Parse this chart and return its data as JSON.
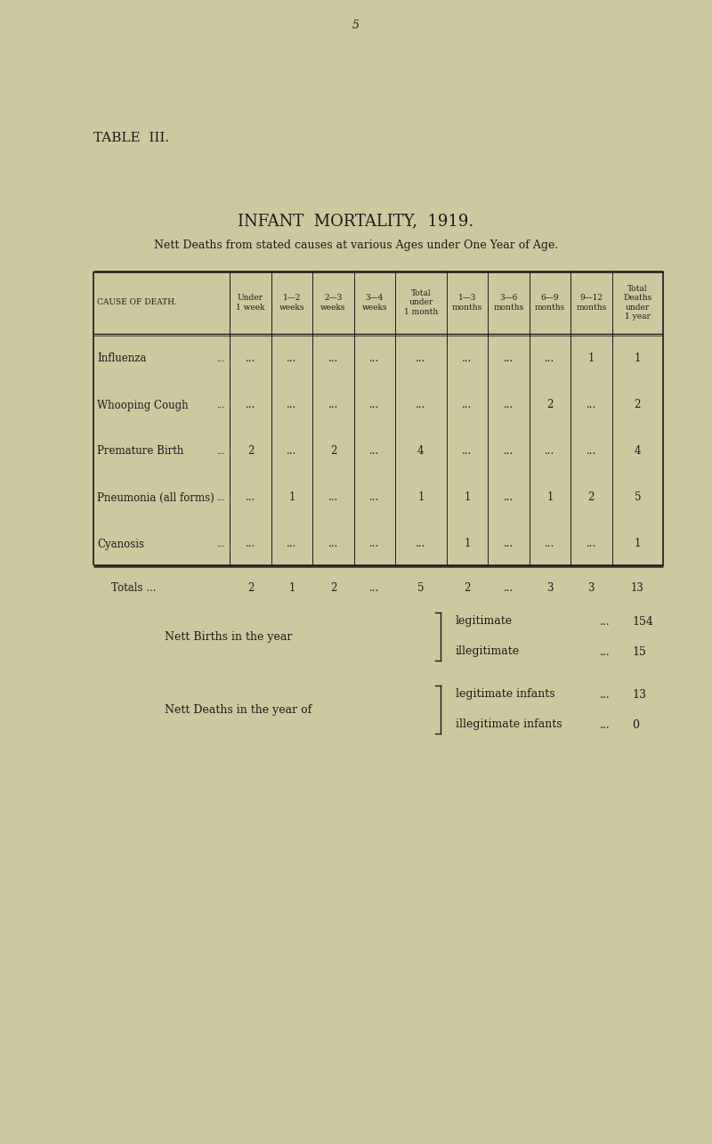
{
  "page_number": "5",
  "table_label": "TABLE  III.",
  "title": "INFANT  MORTALITY,  1919.",
  "subtitle": "Nett Deaths from stated causes at various Ages under One Year of Age.",
  "bg_color": "#cec8a0",
  "col_headers_line1": [
    "CAUSE OF DEATH.",
    "Under",
    "1—2",
    "2—3",
    "3—4",
    "Total",
    "1—3",
    "3—6",
    "6—9",
    "9—12",
    "Total"
  ],
  "col_headers_line2": [
    "",
    "1 week",
    "weeks",
    "weeks",
    "weeks",
    "under",
    "months",
    "months",
    "months",
    "months",
    "Deaths"
  ],
  "col_headers_line3": [
    "",
    "",
    "",
    "",
    "",
    "1 month",
    "",
    "",
    "",
    "",
    "under"
  ],
  "col_headers_line4": [
    "",
    "",
    "",
    "",
    "",
    "",
    "",
    "",
    "",
    "",
    "1 year"
  ],
  "rows": [
    [
      "Influenza",
      "...",
      "...",
      "...",
      "...",
      "...",
      "...",
      "...",
      "...",
      "1",
      "1"
    ],
    [
      "Whooping Cough",
      "...",
      "...",
      "...",
      "...",
      "...",
      "...",
      "...",
      "2",
      "...",
      "2"
    ],
    [
      "Premature Birth",
      "2",
      "...",
      "2",
      "...",
      "4",
      "...",
      "...",
      "...",
      "...",
      "4"
    ],
    [
      "Pneumonia (all forms)",
      "...",
      "1",
      "...",
      "...",
      "1",
      "1",
      "...",
      "1",
      "2",
      "5"
    ],
    [
      "Cyanosis",
      "...",
      "...",
      "...",
      "...",
      "...",
      "1",
      "...",
      "...",
      "...",
      "1"
    ]
  ],
  "totals_row": [
    "Totals ...",
    "2",
    "1",
    "2",
    "...",
    "5",
    "2",
    "...",
    "3",
    "3",
    "13"
  ],
  "cause_dots": [
    "...",
    "..."
  ],
  "footer_births_label": "Nett Births in the year",
  "footer_deaths_label": "Nett Deaths in the year of",
  "footer_births": [
    [
      "legitimate",
      "154"
    ],
    [
      "illegitimate",
      "15"
    ]
  ],
  "footer_deaths": [
    [
      "legitimate infants",
      "13"
    ],
    [
      "illegitimate infants",
      "0"
    ]
  ]
}
